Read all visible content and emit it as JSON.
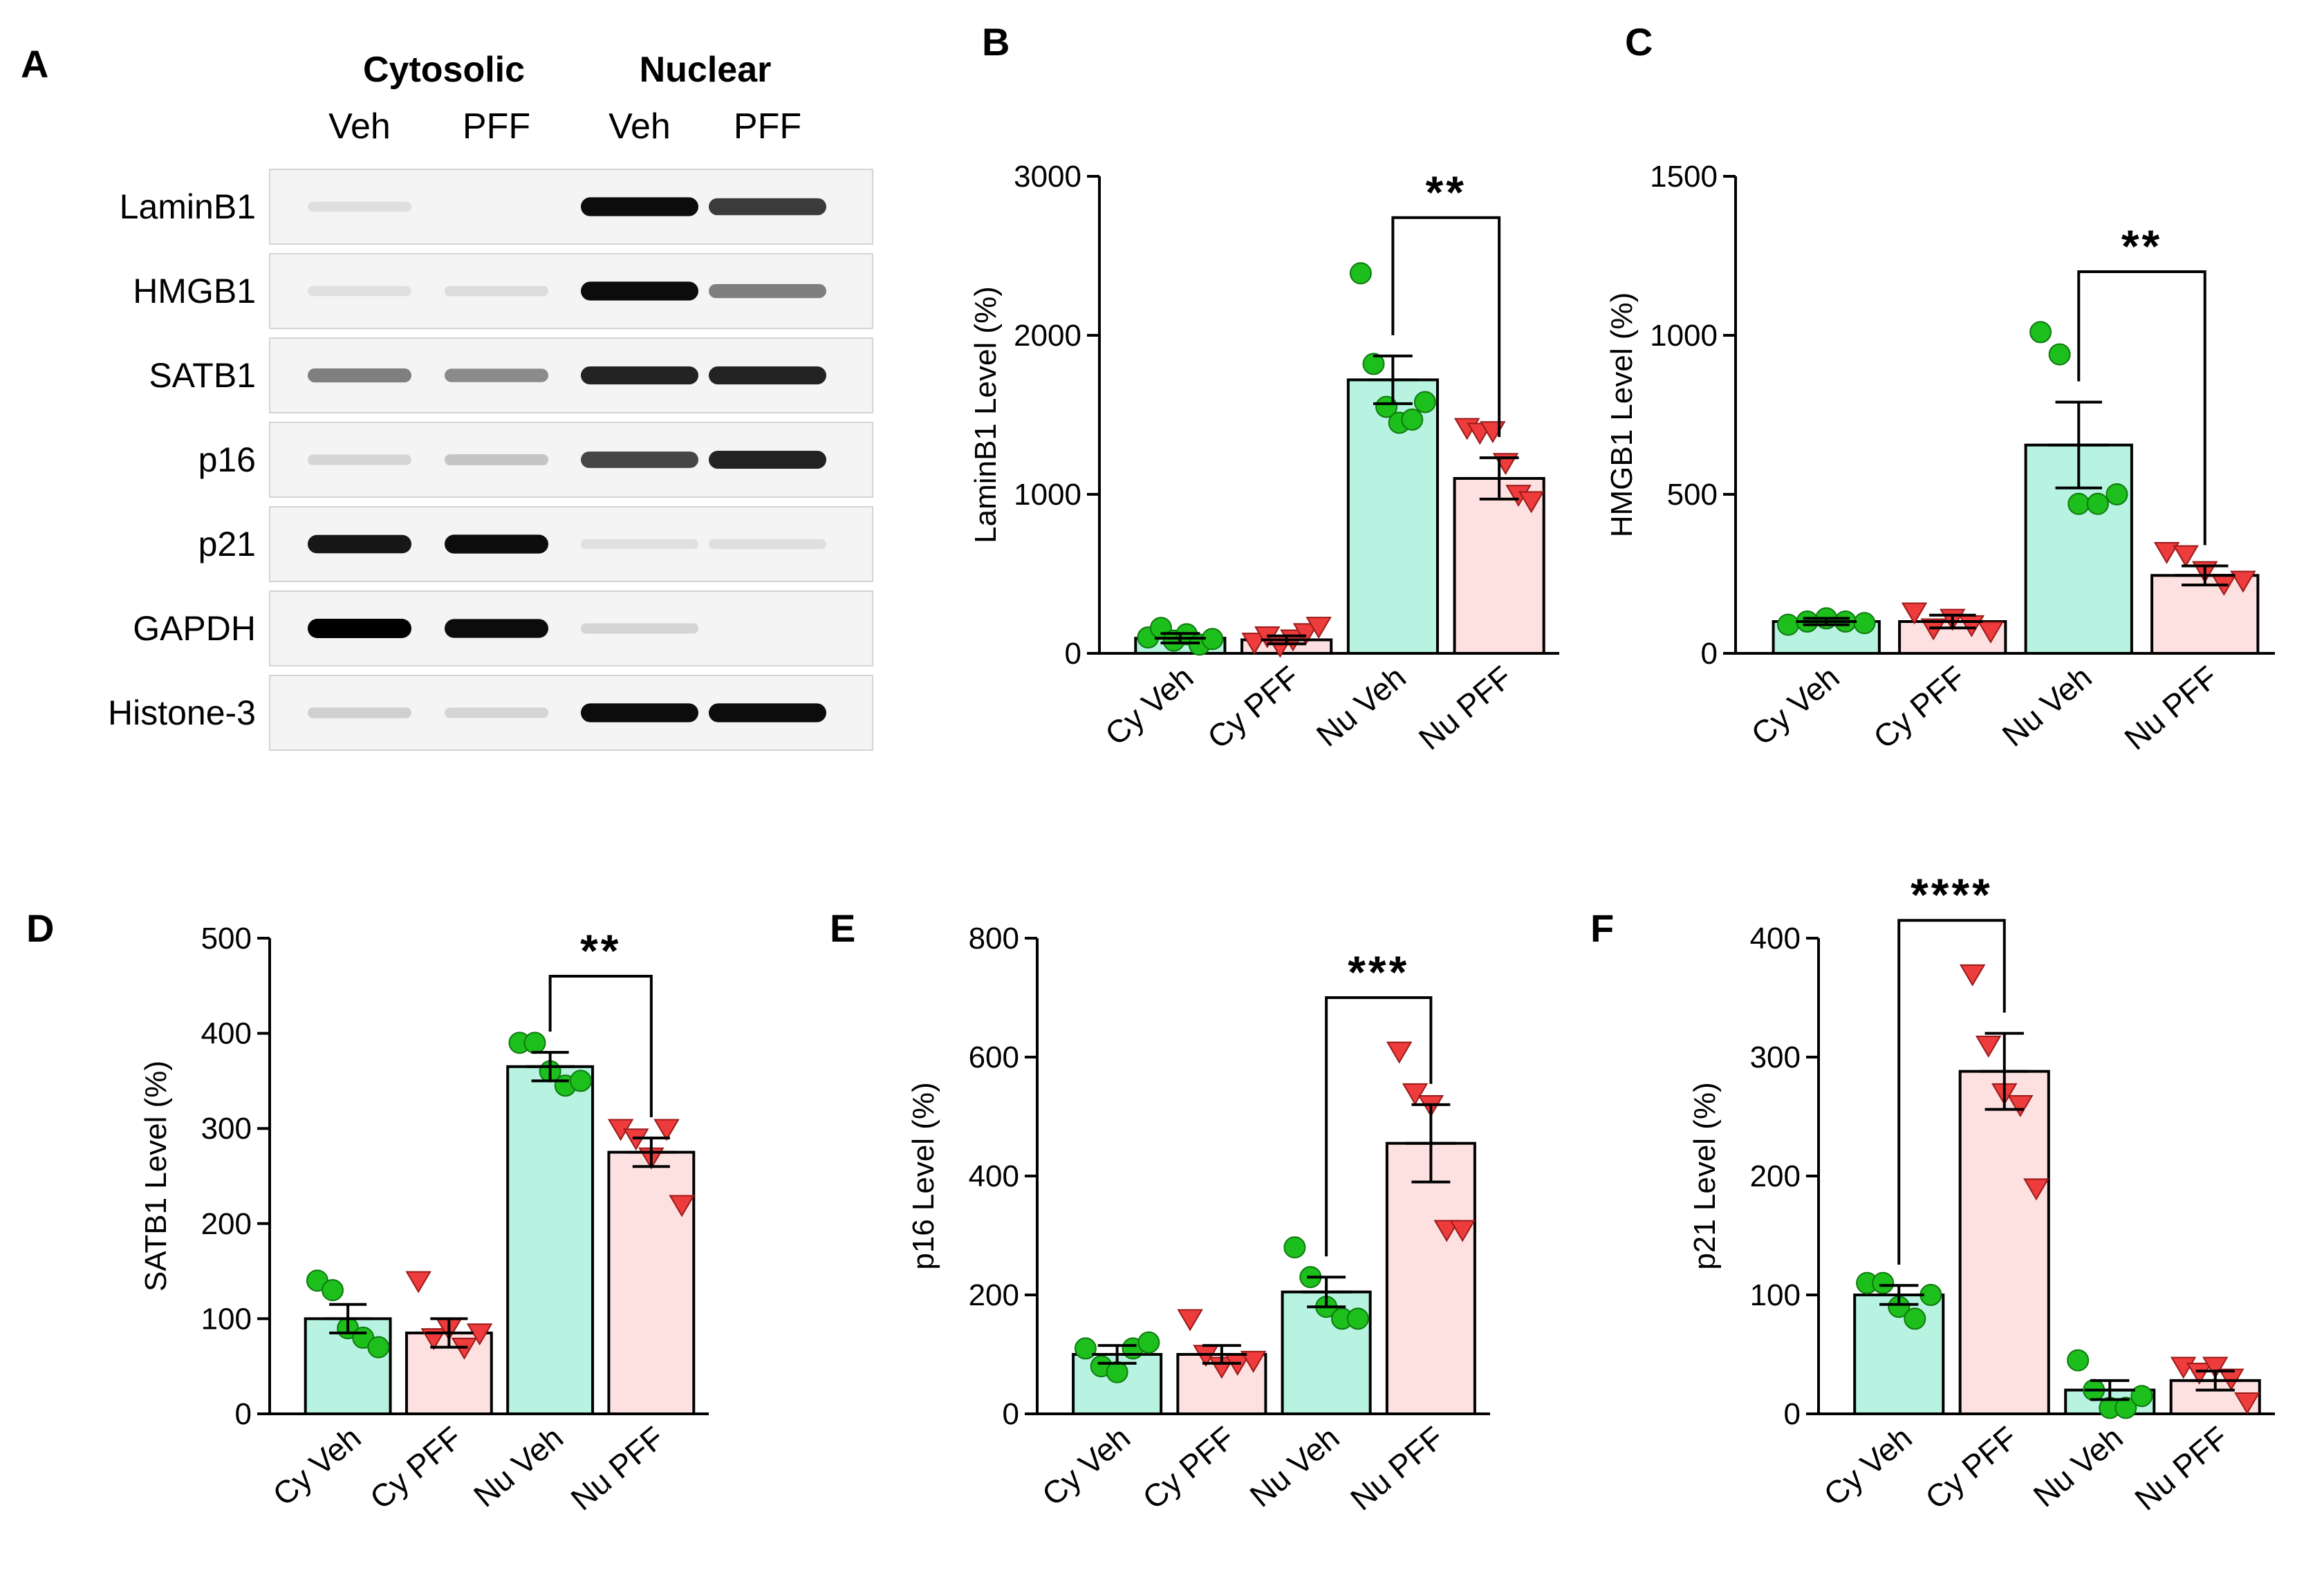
{
  "colors": {
    "veh_fill": "#b8f3e2",
    "pff_fill": "#fde0e0",
    "veh_dot": "#1cbf1c",
    "pff_tri": "#ee3b3b"
  },
  "blot": {
    "panel_label": "A",
    "group_headers": [
      "Cytosolic",
      "Nuclear"
    ],
    "lane_labels": [
      "Veh",
      "PFF",
      "Veh",
      "PFF"
    ],
    "rows": [
      {
        "name": "LaminB1",
        "intensity": [
          0.04,
          0.0,
          0.95,
          0.75
        ]
      },
      {
        "name": "HMGB1",
        "intensity": [
          0.03,
          0.05,
          0.95,
          0.45
        ]
      },
      {
        "name": "SATB1",
        "intensity": [
          0.45,
          0.4,
          0.85,
          0.85
        ]
      },
      {
        "name": "p16",
        "intensity": [
          0.08,
          0.15,
          0.7,
          0.85
        ]
      },
      {
        "name": "p21",
        "intensity": [
          0.9,
          0.95,
          0.03,
          0.04
        ]
      },
      {
        "name": "GAPDH",
        "intensity": [
          1.0,
          0.95,
          0.08,
          0.0
        ]
      },
      {
        "name": "Histone-3",
        "intensity": [
          0.1,
          0.08,
          0.95,
          0.95
        ]
      }
    ]
  },
  "chart_data": [
    {
      "panel": "B",
      "type": "bar",
      "ylabel": "LaminB1 Level (%)",
      "ylim": [
        0,
        3000
      ],
      "yticks": [
        0,
        1000,
        2000,
        3000
      ],
      "categories": [
        "Cy Veh",
        "Cy PFF",
        "Nu Veh",
        "Nu PFF"
      ],
      "values": [
        95,
        85,
        1720,
        1100
      ],
      "sem": [
        30,
        25,
        150,
        130
      ],
      "points": [
        [
          100,
          160,
          80,
          120,
          55,
          90
        ],
        [
          70,
          110,
          50,
          90,
          130,
          170
        ],
        [
          2390,
          1820,
          1550,
          1450,
          1470,
          1580
        ],
        [
          1420,
          1390,
          1400,
          1200,
          1000,
          960
        ]
      ],
      "significance": {
        "from": 2,
        "to": 3,
        "label": "**",
        "y": 2740
      }
    },
    {
      "panel": "C",
      "type": "bar",
      "ylabel": "HMGB1 Level (%)",
      "ylim": [
        0,
        1500
      ],
      "yticks": [
        0,
        500,
        1000,
        1500
      ],
      "categories": [
        "Cy Veh",
        "Cy PFF",
        "Nu Veh",
        "Nu PFF"
      ],
      "values": [
        100,
        100,
        655,
        245
      ],
      "sem": [
        10,
        20,
        135,
        30
      ],
      "points": [
        [
          90,
          100,
          110,
          100,
          95
        ],
        [
          130,
          80,
          110,
          90,
          70
        ],
        [
          1010,
          940,
          470,
          470,
          500
        ],
        [
          320,
          310,
          260,
          220,
          230
        ]
      ],
      "significance": {
        "from": 2,
        "to": 3,
        "label": "**",
        "y": 1200
      }
    },
    {
      "panel": "D",
      "type": "bar",
      "ylabel": "SATB1 Level (%)",
      "ylim": [
        0,
        500
      ],
      "yticks": [
        0,
        100,
        200,
        300,
        400,
        500
      ],
      "categories": [
        "Cy Veh",
        "Cy PFF",
        "Nu Veh",
        "Nu PFF"
      ],
      "values": [
        100,
        85,
        365,
        275
      ],
      "sem": [
        15,
        15,
        15,
        15
      ],
      "points": [
        [
          140,
          130,
          90,
          80,
          70
        ],
        [
          140,
          80,
          90,
          70,
          85
        ],
        [
          390,
          390,
          360,
          345,
          350
        ],
        [
          300,
          290,
          270,
          300,
          220
        ]
      ],
      "significance": {
        "from": 2,
        "to": 3,
        "label": "**",
        "y": 460
      }
    },
    {
      "panel": "E",
      "type": "bar",
      "ylabel": "p16 Level (%)",
      "ylim": [
        0,
        800
      ],
      "yticks": [
        0,
        200,
        400,
        600,
        800
      ],
      "categories": [
        "Cy Veh",
        "Cy PFF",
        "Nu Veh",
        "Nu PFF"
      ],
      "values": [
        100,
        100,
        205,
        455
      ],
      "sem": [
        15,
        15,
        25,
        65
      ],
      "points": [
        [
          110,
          80,
          70,
          110,
          120
        ],
        [
          160,
          100,
          80,
          85,
          90
        ],
        [
          280,
          230,
          180,
          160,
          160
        ],
        [
          610,
          540,
          520,
          310,
          310
        ]
      ],
      "significance": {
        "from": 2,
        "to": 3,
        "label": "***",
        "y": 700
      }
    },
    {
      "panel": "F",
      "type": "bar",
      "ylabel": "p21 Level (%)",
      "ylim": [
        0,
        400
      ],
      "yticks": [
        0,
        100,
        200,
        300,
        400
      ],
      "categories": [
        "Cy Veh",
        "Cy PFF",
        "Nu Veh",
        "Nu PFF"
      ],
      "values": [
        100,
        288,
        20,
        28
      ],
      "sem": [
        8,
        32,
        8,
        8
      ],
      "points": [
        [
          110,
          110,
          90,
          80,
          100
        ],
        [
          370,
          310,
          270,
          260,
          190
        ],
        [
          45,
          20,
          5,
          5,
          15
        ],
        [
          40,
          35,
          40,
          30,
          10
        ]
      ],
      "significance": {
        "from": 0,
        "to": 1,
        "label": "****",
        "y": 415
      }
    }
  ]
}
